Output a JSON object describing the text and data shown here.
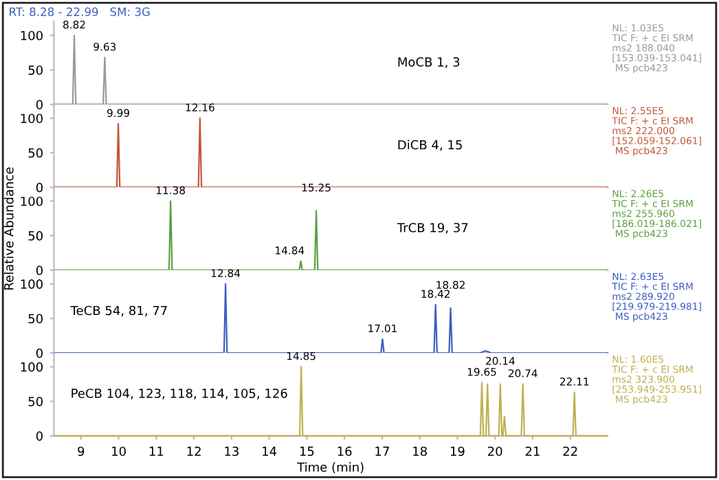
{
  "chart_data": [
    {
      "type": "line",
      "title": "MoCB 1, 3",
      "xlim": [
        8.28,
        22.99
      ],
      "ylim": [
        0,
        120
      ],
      "yticks": [
        0,
        50,
        100
      ],
      "tick_labels": "y",
      "grid": false,
      "legend": false,
      "series": [
        {
          "color": "#9a9a9a",
          "x": [
            8.28,
            8.78,
            8.82,
            8.86,
            9.59,
            9.63,
            9.67,
            22.99
          ],
          "values": [
            0,
            0,
            100,
            0,
            0,
            68,
            0,
            0
          ]
        }
      ],
      "annotations": [
        {
          "text": "8.82",
          "x": 8.82,
          "y": 100
        },
        {
          "text": "9.63",
          "x": 9.63,
          "y": 68
        },
        "NL: 1.03E5\nTIC F: + c EI SRM\nms2 188.040\n[153.039-153.041]\n MS pcb423",
        "RT: 8.28 - 22.99   SM: 3G"
      ]
    },
    {
      "type": "line",
      "title": "DiCB 4, 15",
      "xlim": [
        8.28,
        22.99
      ],
      "ylim": [
        0,
        120
      ],
      "yticks": [
        0,
        50,
        100
      ],
      "tick_labels": "y",
      "grid": false,
      "legend": false,
      "series": [
        {
          "color": "#c0583a",
          "x": [
            8.28,
            9.95,
            9.99,
            10.03,
            12.12,
            12.16,
            12.2,
            22.99
          ],
          "values": [
            0,
            0,
            92,
            0,
            0,
            100,
            0,
            0
          ]
        }
      ],
      "annotations": [
        {
          "text": "9.99",
          "x": 9.99,
          "y": 92
        },
        {
          "text": "12.16",
          "x": 12.16,
          "y": 100
        },
        "NL: 2.55E5\nTIC F: + c EI SRM\nms2 222.000\n[152.059-152.061]\n MS pcb423"
      ]
    },
    {
      "type": "line",
      "title": "TrCB 19, 37",
      "ylabel": "Relative Abundance",
      "xlim": [
        8.28,
        22.99
      ],
      "ylim": [
        0,
        120
      ],
      "yticks": [
        0,
        50,
        100
      ],
      "tick_labels": "y",
      "grid": false,
      "legend": false,
      "series": [
        {
          "color": "#5aa040",
          "x": [
            8.28,
            11.34,
            11.38,
            11.42,
            14.8,
            14.84,
            14.88,
            15.21,
            15.25,
            15.29,
            22.99
          ],
          "values": [
            0,
            0,
            100,
            0,
            0,
            13,
            0,
            0,
            86,
            0,
            0
          ]
        }
      ],
      "annotations": [
        {
          "text": "11.38",
          "x": 11.38,
          "y": 100
        },
        {
          "text": "14.84",
          "x": 14.84,
          "y": 13
        },
        {
          "text": "15.25",
          "x": 15.25,
          "y": 86
        },
        "NL: 2.26E5\nTIC F: + c EI SRM\nms2 255.960\n[186.019-186.021]\n MS pcb423"
      ]
    },
    {
      "type": "line",
      "title": "TeCB 54, 81, 77",
      "xlim": [
        8.28,
        22.99
      ],
      "ylim": [
        0,
        120
      ],
      "yticks": [
        0,
        50,
        100
      ],
      "tick_labels": "y",
      "grid": false,
      "legend": false,
      "series": [
        {
          "color": "#3a5fc0",
          "x": [
            8.28,
            12.8,
            12.84,
            12.88,
            16.97,
            17.01,
            17.05,
            18.38,
            18.42,
            18.46,
            18.78,
            18.82,
            18.86,
            19.6,
            19.75,
            19.9,
            22.99
          ],
          "values": [
            0,
            0,
            100,
            0,
            0,
            20,
            0,
            0,
            70,
            0,
            0,
            65,
            0,
            0,
            3,
            0,
            0
          ]
        }
      ],
      "annotations": [
        {
          "text": "12.84",
          "x": 12.84,
          "y": 100
        },
        {
          "text": "17.01",
          "x": 17.01,
          "y": 20
        },
        {
          "text": "18.42",
          "x": 18.42,
          "y": 70
        },
        {
          "text": "18.82",
          "x": 18.82,
          "y": 65
        },
        "NL: 2.63E5\nTIC F: + c EI SRM\nms2 289.920\n[219.979-219.981]\n MS pcb423"
      ]
    },
    {
      "type": "line",
      "title": "PeCB 104, 123, 118, 114, 105, 126",
      "xlabel": "Time (min)",
      "xlim": [
        8.28,
        22.99
      ],
      "ylim": [
        0,
        120
      ],
      "yticks": [
        0,
        50,
        100
      ],
      "xticks": [
        9,
        10,
        11,
        12,
        13,
        14,
        15,
        16,
        17,
        18,
        19,
        20,
        21,
        22
      ],
      "grid": false,
      "legend": false,
      "series": [
        {
          "color": "#c0b050",
          "x": [
            8.28,
            14.81,
            14.85,
            14.89,
            19.61,
            19.65,
            19.69,
            19.76,
            19.8,
            19.84,
            20.1,
            20.14,
            20.18,
            20.21,
            20.25,
            20.29,
            20.7,
            20.74,
            20.78,
            22.07,
            22.11,
            22.15,
            22.99
          ],
          "values": [
            0,
            0,
            100,
            0,
            0,
            77,
            0,
            0,
            75,
            0,
            0,
            75,
            0,
            0,
            28,
            0,
            0,
            75,
            0,
            0,
            63,
            0,
            0
          ]
        }
      ],
      "annotations": [
        {
          "text": "14.85",
          "x": 14.85,
          "y": 100
        },
        {
          "text": "19.65",
          "x": 19.65,
          "y": 77
        },
        {
          "text": "20.14",
          "x": 20.14,
          "y": 75
        },
        {
          "text": "20.74",
          "x": 20.74,
          "y": 75
        },
        {
          "text": "22.11",
          "x": 22.11,
          "y": 63
        },
        "NL: 1.60E5\nTIC F: + c EI SRM\nms2 323.900\n[253.949-253.951]\n MS pcb423"
      ]
    }
  ]
}
